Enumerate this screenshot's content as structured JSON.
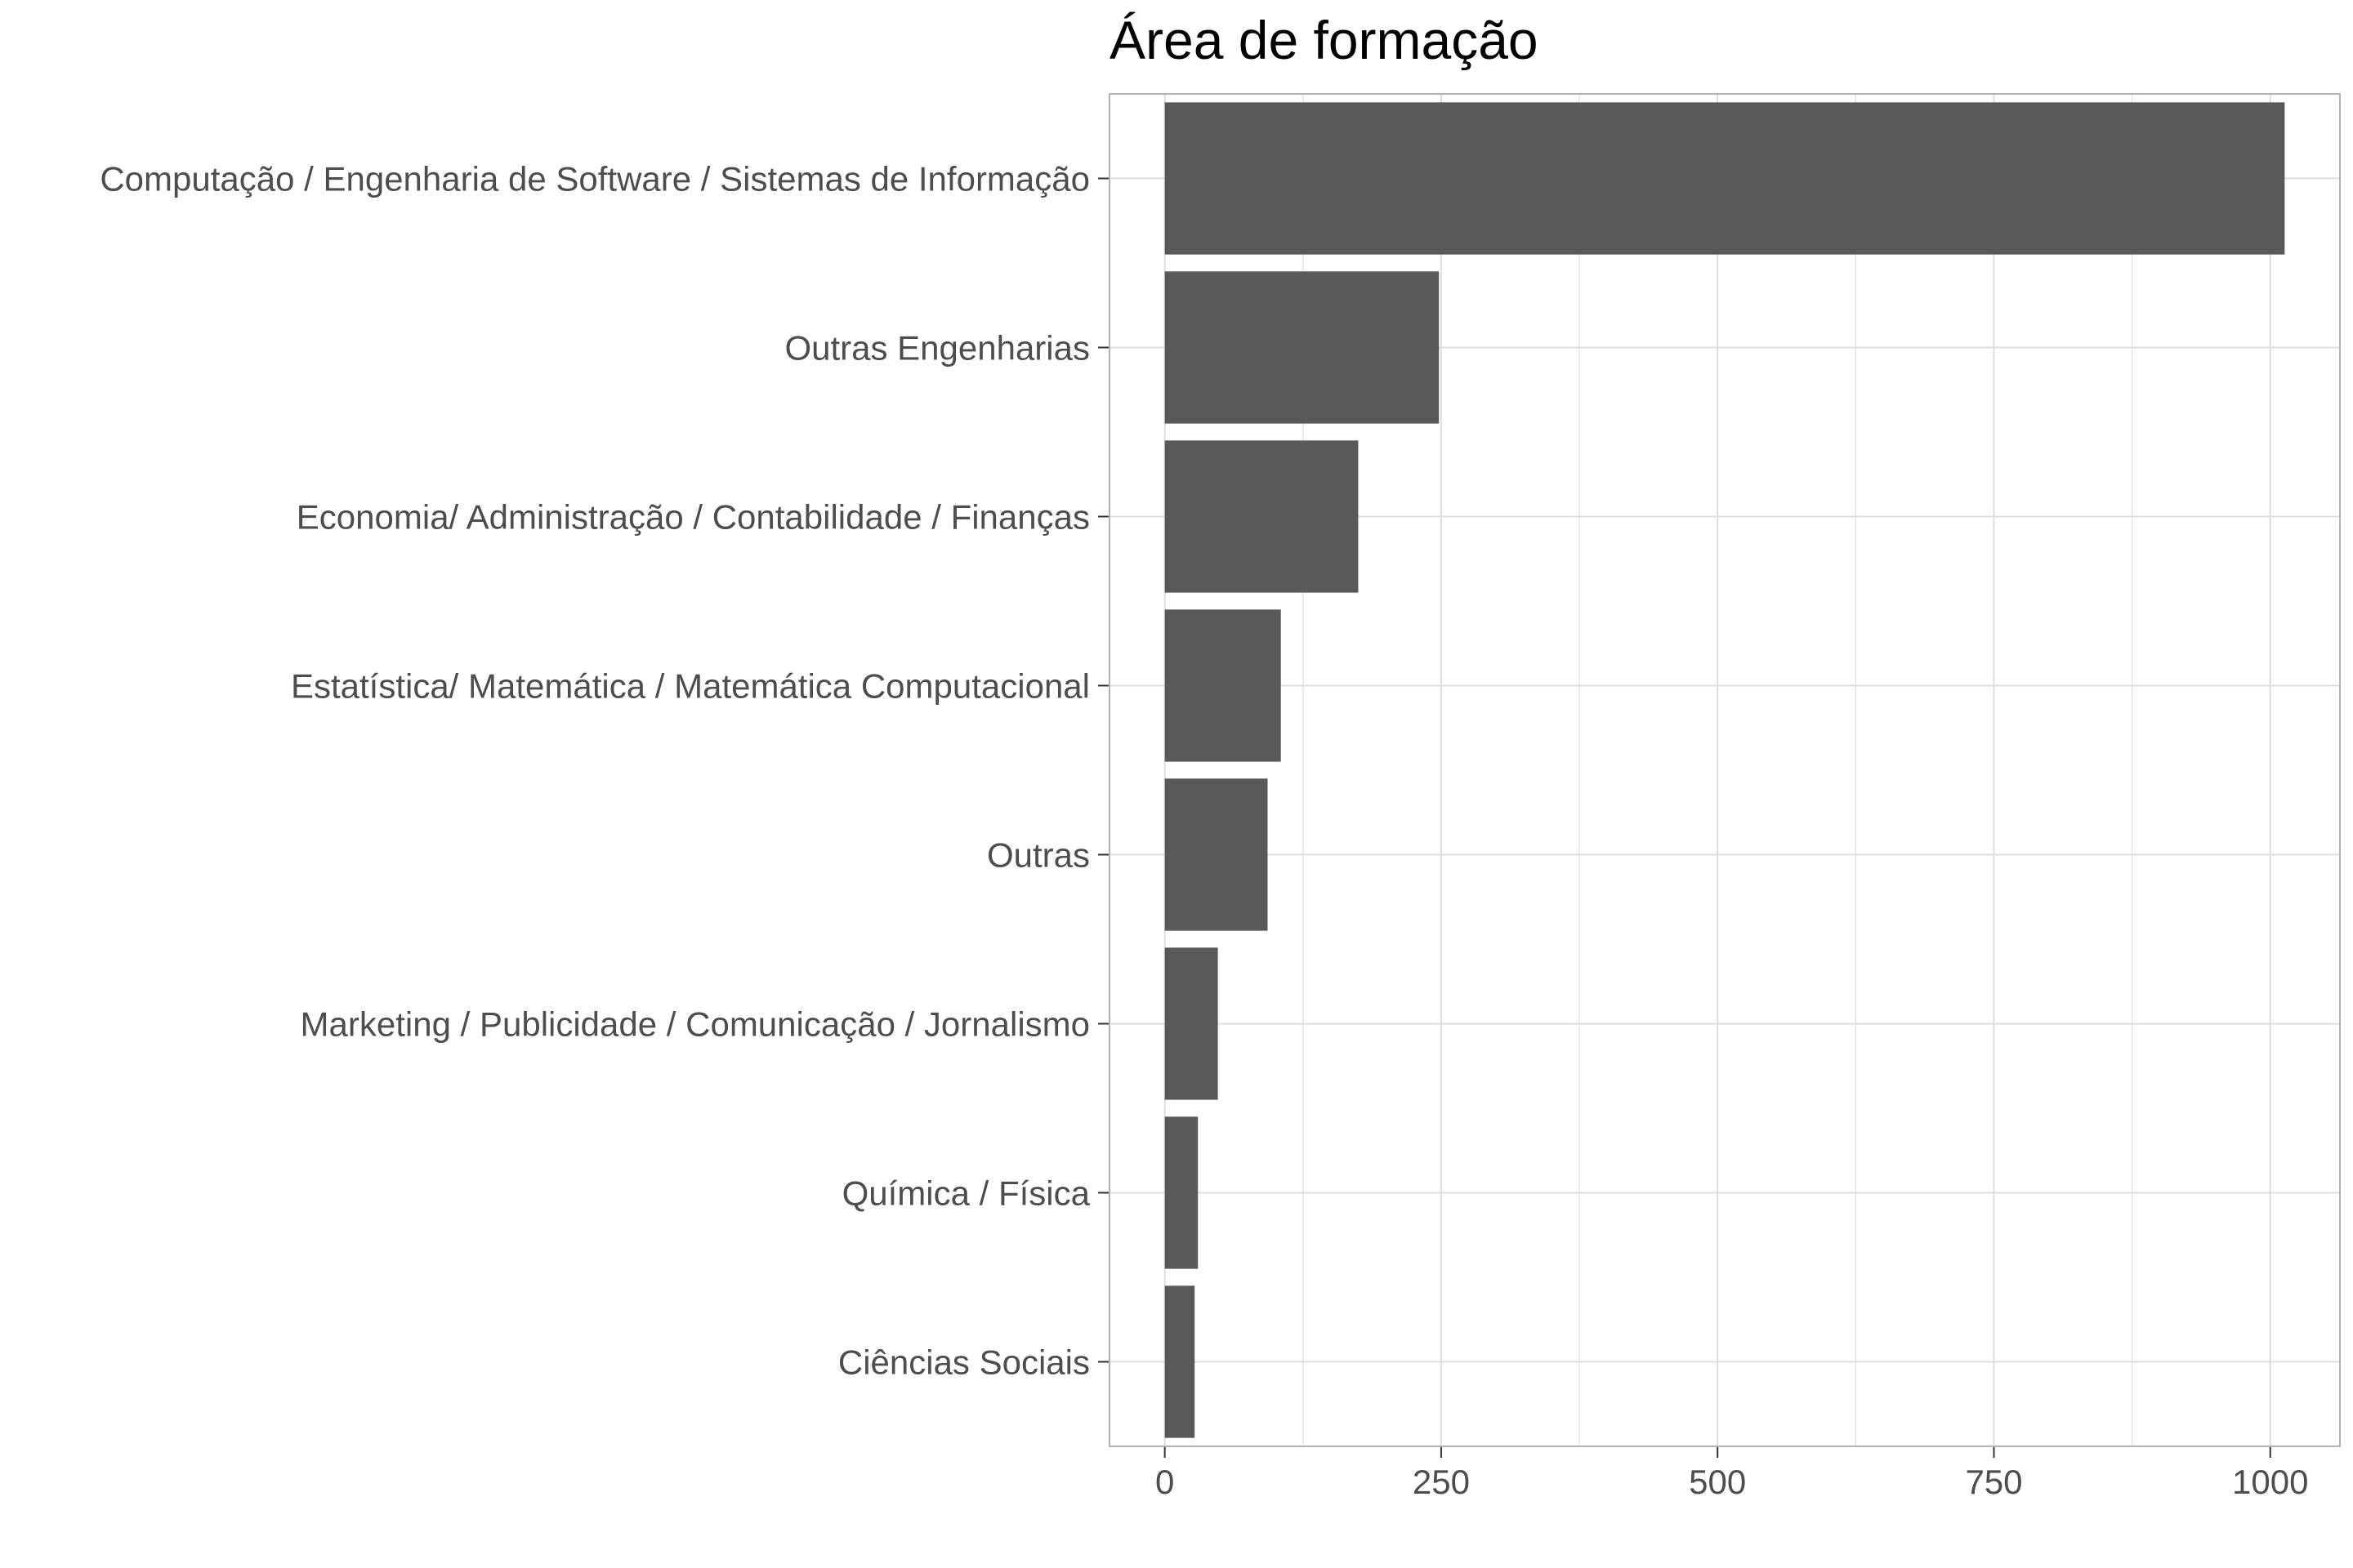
{
  "chart_data": {
    "type": "bar",
    "orientation": "horizontal",
    "title": "Área de formação",
    "xlabel": "",
    "ylabel": "",
    "categories": [
      "Computação / Engenharia de Software / Sistemas de Informação",
      "Outras Engenharias",
      "Economia/ Administração / Contabilidade / Finanças",
      "Estatística/ Matemática / Matemática Computacional",
      "Outras",
      "Marketing / Publicidade / Comunicação / Jornalismo",
      "Química / Física",
      "Ciências Sociais"
    ],
    "values": [
      1013,
      248,
      175,
      105,
      93,
      48,
      30,
      27
    ],
    "xlim": [
      -50,
      1063
    ],
    "xticks": [
      0,
      250,
      500,
      750,
      1000
    ],
    "xtick_labels": [
      "0",
      "250",
      "500",
      "750",
      "1000"
    ],
    "minor_grid": [
      125,
      375,
      625,
      875
    ],
    "grid": true,
    "bar_color": "#595959",
    "grid_color": "#dedede",
    "panel_border_color": "#b3b3b3"
  }
}
